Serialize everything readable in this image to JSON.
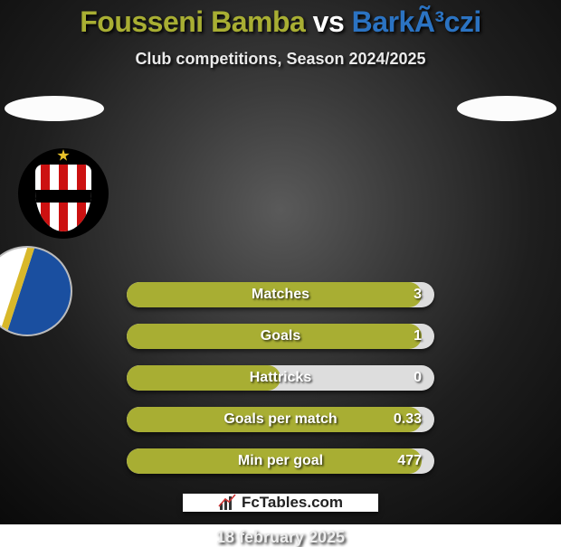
{
  "title": {
    "player_a": "Fousseni Bamba",
    "vs": "vs",
    "player_b": "BarkÃ³czi",
    "color_a": "#a8ae33",
    "color_vs": "#ffffff",
    "color_b": "#2b73c2",
    "fontsize": 32
  },
  "subtitle": "Club competitions, Season 2024/2025",
  "date": "18 february 2025",
  "logo_text": "FcTables.com",
  "colors": {
    "bar_fill": "#a8ae33",
    "bar_track": "#dddddd",
    "text_on_bar": "#ffffff"
  },
  "stats": [
    {
      "label": "Matches",
      "value": "3",
      "fill_pct": 96
    },
    {
      "label": "Goals",
      "value": "1",
      "fill_pct": 96
    },
    {
      "label": "Hattricks",
      "value": "0",
      "fill_pct": 50
    },
    {
      "label": "Goals per match",
      "value": "0.33",
      "fill_pct": 96
    },
    {
      "label": "Min per goal",
      "value": "477",
      "fill_pct": 96
    }
  ]
}
